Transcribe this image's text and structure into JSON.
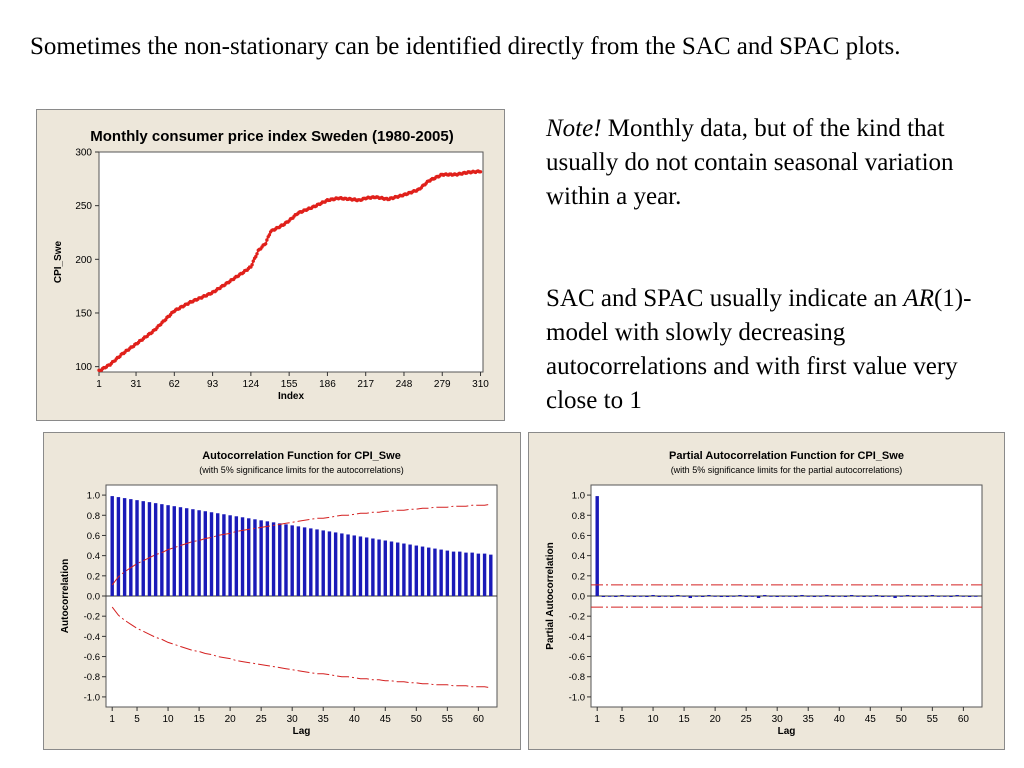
{
  "text": {
    "intro": "Sometimes the non-stationary can be identified directly from the SAC and SPAC plots.",
    "note_em": "Note!",
    "note_rest": " Monthly data, but of the kind that usually do not contain seasonal variation within a year.",
    "sac_line1": "SAC and SPAC usually indicate an ",
    "sac_ar": "AR",
    "sac_rest": "(1)-model with slowly decreasing autocorrelations and with first value very close to 1"
  },
  "colors": {
    "series": "#e0201b",
    "bars": "#1a1ab8",
    "limits": "#d42020",
    "panel_bg": "#ede7da",
    "plot_bg": "#ffffff"
  },
  "chart_data": [
    {
      "type": "line",
      "title": "Monthly consumer price index Sweden (1980-2005)",
      "xlabel": "Index",
      "ylabel": "CPI_Swe",
      "xlim": [
        1,
        312
      ],
      "ylim": [
        95,
        300
      ],
      "xticks": [
        1,
        31,
        62,
        93,
        124,
        155,
        186,
        217,
        248,
        279,
        310
      ],
      "yticks": [
        100,
        150,
        200,
        250,
        300
      ],
      "anchors": [
        [
          1,
          96
        ],
        [
          10,
          102
        ],
        [
          20,
          112
        ],
        [
          31,
          121
        ],
        [
          45,
          133
        ],
        [
          62,
          152
        ],
        [
          75,
          160
        ],
        [
          93,
          169
        ],
        [
          105,
          178
        ],
        [
          118,
          188
        ],
        [
          124,
          193
        ],
        [
          130,
          208
        ],
        [
          136,
          215
        ],
        [
          140,
          226
        ],
        [
          150,
          232
        ],
        [
          155,
          236
        ],
        [
          162,
          243
        ],
        [
          175,
          249
        ],
        [
          186,
          255
        ],
        [
          195,
          257
        ],
        [
          205,
          256
        ],
        [
          212,
          255
        ],
        [
          217,
          257
        ],
        [
          225,
          258
        ],
        [
          235,
          256
        ],
        [
          248,
          260
        ],
        [
          260,
          265
        ],
        [
          268,
          273
        ],
        [
          279,
          279
        ],
        [
          290,
          279
        ],
        [
          300,
          281
        ],
        [
          310,
          282
        ]
      ],
      "marker": "dot"
    },
    {
      "type": "bar",
      "title": "Autocorrelation Function for CPI_Swe",
      "subtitle": "(with 5% significance limits for the autocorrelations)",
      "xlabel": "Lag",
      "ylabel": "Autocorrelation",
      "xlim": [
        0,
        63
      ],
      "ylim": [
        -1.1,
        1.1
      ],
      "xticks": [
        1,
        5,
        10,
        15,
        20,
        25,
        30,
        35,
        40,
        45,
        50,
        55,
        60
      ],
      "yticks": [
        1.0,
        0.8,
        0.6,
        0.4,
        0.2,
        0.0,
        -0.2,
        -0.4,
        -0.6,
        -0.8,
        -1.0
      ],
      "ytick_labels": [
        "1.0",
        "0.8",
        "0.6",
        "0.4",
        "0.2",
        "0.0",
        "-0.2",
        "-0.4",
        "-0.6",
        "-0.8",
        "-1.0"
      ],
      "lags": [
        1,
        2,
        3,
        4,
        5,
        6,
        7,
        8,
        9,
        10,
        11,
        12,
        13,
        14,
        15,
        16,
        17,
        18,
        19,
        20,
        21,
        22,
        23,
        24,
        25,
        26,
        27,
        28,
        29,
        30,
        31,
        32,
        33,
        34,
        35,
        36,
        37,
        38,
        39,
        40,
        41,
        42,
        43,
        44,
        45,
        46,
        47,
        48,
        49,
        50,
        51,
        52,
        53,
        54,
        55,
        56,
        57,
        58,
        59,
        60,
        61,
        62
      ],
      "values": [
        0.99,
        0.98,
        0.97,
        0.96,
        0.95,
        0.94,
        0.93,
        0.92,
        0.91,
        0.9,
        0.89,
        0.88,
        0.87,
        0.86,
        0.85,
        0.84,
        0.83,
        0.82,
        0.81,
        0.8,
        0.79,
        0.78,
        0.77,
        0.76,
        0.75,
        0.74,
        0.73,
        0.72,
        0.71,
        0.7,
        0.69,
        0.68,
        0.67,
        0.66,
        0.65,
        0.64,
        0.63,
        0.62,
        0.61,
        0.6,
        0.59,
        0.58,
        0.57,
        0.56,
        0.55,
        0.54,
        0.53,
        0.52,
        0.51,
        0.5,
        0.49,
        0.48,
        0.47,
        0.46,
        0.45,
        0.44,
        0.44,
        0.43,
        0.43,
        0.42,
        0.42,
        0.41
      ],
      "limits": [
        0.11,
        0.19,
        0.24,
        0.28,
        0.32,
        0.35,
        0.38,
        0.41,
        0.43,
        0.46,
        0.48,
        0.5,
        0.52,
        0.54,
        0.55,
        0.57,
        0.58,
        0.6,
        0.61,
        0.62,
        0.64,
        0.65,
        0.66,
        0.67,
        0.68,
        0.69,
        0.7,
        0.71,
        0.72,
        0.73,
        0.74,
        0.75,
        0.76,
        0.77,
        0.77,
        0.78,
        0.79,
        0.8,
        0.8,
        0.81,
        0.82,
        0.82,
        0.83,
        0.83,
        0.84,
        0.84,
        0.85,
        0.85,
        0.86,
        0.86,
        0.87,
        0.87,
        0.88,
        0.88,
        0.88,
        0.89,
        0.89,
        0.89,
        0.9,
        0.9,
        0.9,
        0.91
      ]
    },
    {
      "type": "bar",
      "title": "Partial Autocorrelation Function for CPI_Swe",
      "subtitle": "(with 5% significance limits for the partial autocorrelations)",
      "xlabel": "Lag",
      "ylabel": "Partial Autocorrelation",
      "xlim": [
        0,
        63
      ],
      "ylim": [
        -1.1,
        1.1
      ],
      "xticks": [
        1,
        5,
        10,
        15,
        20,
        25,
        30,
        35,
        40,
        45,
        50,
        55,
        60
      ],
      "yticks": [
        1.0,
        0.8,
        0.6,
        0.4,
        0.2,
        0.0,
        -0.2,
        -0.4,
        -0.6,
        -0.8,
        -1.0
      ],
      "ytick_labels": [
        "1.0",
        "0.8",
        "0.6",
        "0.4",
        "0.2",
        "0.0",
        "-0.2",
        "-0.4",
        "-0.6",
        "-0.8",
        "-1.0"
      ],
      "lags": [
        1,
        2,
        3,
        4,
        5,
        6,
        7,
        8,
        9,
        10,
        11,
        12,
        13,
        14,
        15,
        16,
        17,
        18,
        19,
        20,
        21,
        22,
        23,
        24,
        25,
        26,
        27,
        28,
        29,
        30,
        31,
        32,
        33,
        34,
        35,
        36,
        37,
        38,
        39,
        40,
        41,
        42,
        43,
        44,
        45,
        46,
        47,
        48,
        49,
        50,
        51,
        52,
        53,
        54,
        55,
        56,
        57,
        58,
        59,
        60,
        61,
        62
      ],
      "values": [
        0.99,
        -0.01,
        0.0,
        -0.01,
        0.01,
        0.0,
        -0.01,
        0.0,
        -0.01,
        0.01,
        -0.01,
        0.0,
        -0.01,
        0.01,
        0.0,
        -0.02,
        0.0,
        -0.01,
        0.01,
        0.0,
        -0.01,
        -0.01,
        0.0,
        0.01,
        -0.01,
        0.0,
        -0.02,
        0.01,
        0.0,
        -0.01,
        0.0,
        0.0,
        -0.01,
        0.01,
        0.0,
        -0.01,
        0.0,
        0.01,
        -0.01,
        0.0,
        -0.01,
        0.01,
        0.0,
        -0.01,
        0.0,
        0.01,
        -0.01,
        0.0,
        -0.02,
        0.0,
        0.01,
        -0.01,
        0.0,
        -0.01,
        0.01,
        0.0,
        0.0,
        -0.01,
        0.01,
        0.0,
        -0.01,
        0.0
      ],
      "limit": 0.11
    }
  ]
}
